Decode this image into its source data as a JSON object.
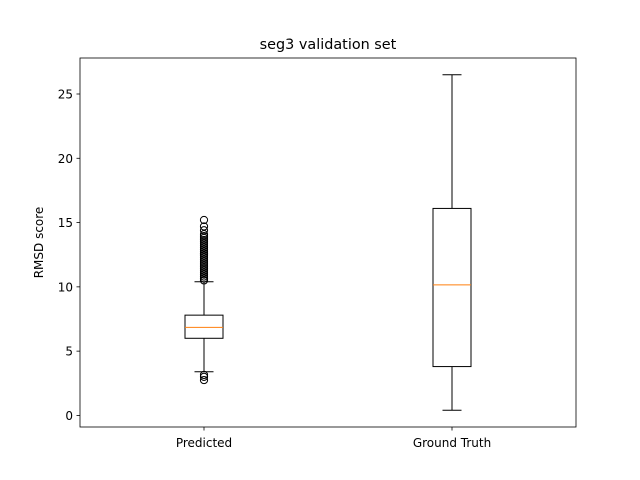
{
  "chart_data": {
    "type": "box",
    "title": "seg3 validation set",
    "xlabel": "",
    "ylabel": "RMSD score",
    "ylim": [
      -0.9,
      27.8
    ],
    "yticks": [
      0,
      5,
      10,
      15,
      20,
      25
    ],
    "grid": false,
    "categories": [
      "Predicted",
      "Ground Truth"
    ],
    "boxes": [
      {
        "label": "Predicted",
        "whisker_low": 3.4,
        "q1": 6.0,
        "median": 6.85,
        "q3": 7.8,
        "whisker_high": 10.4,
        "outliers": [
          2.75,
          3.0,
          3.15,
          10.5,
          10.65,
          10.8,
          10.95,
          11.1,
          11.25,
          11.4,
          11.55,
          11.7,
          11.85,
          12.0,
          12.15,
          12.3,
          12.45,
          12.6,
          12.75,
          12.9,
          13.05,
          13.2,
          13.35,
          13.5,
          13.65,
          13.8,
          13.95,
          14.1,
          14.4,
          14.7,
          15.2
        ]
      },
      {
        "label": "Ground Truth",
        "whisker_low": 0.4,
        "q1": 3.8,
        "median": 10.15,
        "q3": 16.1,
        "whisker_high": 26.5,
        "outliers": []
      }
    ],
    "colors": {
      "box": "#000000",
      "median": "#ff7f0e",
      "outlier": "#000000"
    }
  }
}
